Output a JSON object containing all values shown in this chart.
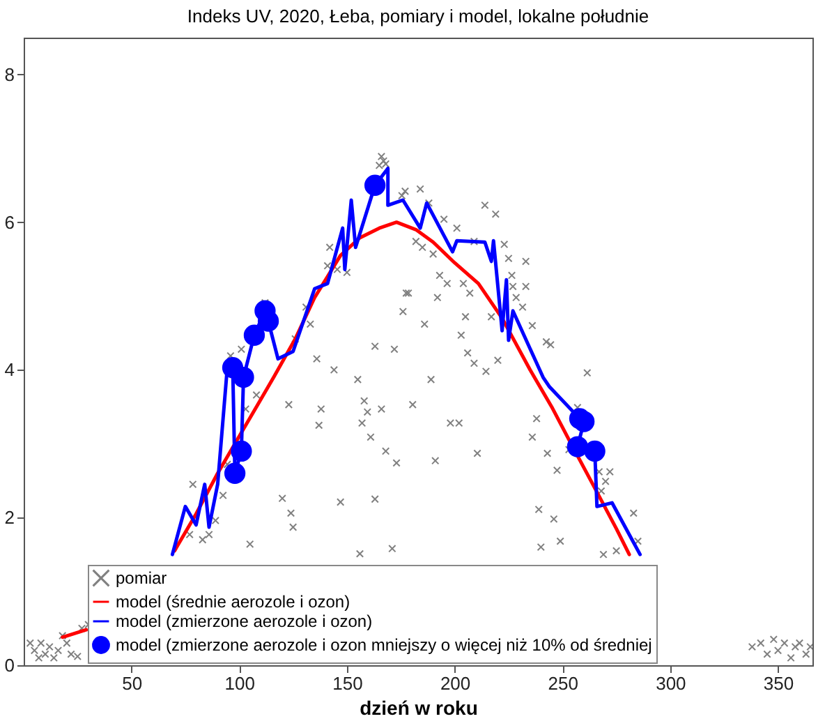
{
  "chart_data": {
    "type": "line",
    "title": "Indeks UV, 2020, Łeba, pomiary i model, lokalne południe",
    "xlabel": "dzień w roku",
    "xlim": [
      0,
      366
    ],
    "ylim": [
      0,
      8.5
    ],
    "xticks": [
      50,
      100,
      150,
      200,
      250,
      300,
      350
    ],
    "yticks": [
      0,
      2,
      4,
      6,
      8
    ],
    "legend": "bottom left",
    "series": [
      {
        "name": "pomiar",
        "type": "scatter",
        "marker": "cross",
        "color": "#808080",
        "x": [
          3,
          5,
          7,
          8,
          10,
          12,
          14,
          16,
          18,
          20,
          22,
          25,
          27,
          30,
          338,
          342,
          345,
          348,
          350,
          353,
          356,
          358,
          360,
          363,
          365,
          77,
          83,
          86,
          78.5,
          89,
          92.5,
          105,
          108,
          103,
          123,
          120,
          124,
          125,
          136,
          144,
          138,
          137,
          155,
          158,
          157,
          166,
          159.5,
          161,
          168,
          173,
          147,
          163,
          156,
          171,
          94.5,
          142,
          141,
          145.5,
          150,
          165,
          166,
          168,
          175.5,
          131,
          133,
          126,
          163,
          172,
          176,
          177.5,
          101,
          112,
          96,
          167,
          177,
          184,
          188,
          195,
          201,
          214,
          219,
          182,
          185,
          190,
          193,
          196.5,
          204,
          207,
          209,
          223,
          225,
          233,
          226.5,
          227,
          233,
          228.5,
          231.5,
          236,
          242.5,
          244.5,
          178.5,
          192,
          186,
          205,
          217,
          203,
          206,
          209,
          214.5,
          220,
          261.5,
          189,
          180.5,
          198,
          202,
          210.5,
          191,
          238,
          236,
          243,
          247.5,
          257,
          253,
          267,
          272,
          270,
          268,
          283,
          239,
          246,
          240,
          249,
          269,
          275,
          285
        ],
        "values": [
          0.3,
          0.2,
          0.1,
          0.3,
          0.15,
          0.25,
          0.1,
          0.2,
          0.4,
          0.3,
          0.15,
          0.12,
          0.5,
          0.55,
          0.25,
          0.3,
          0.15,
          0.35,
          0.2,
          0.3,
          0.1,
          0.25,
          0.3,
          0.15,
          0.25,
          1.77,
          1.7,
          1.77,
          2.45,
          1.96,
          2.3,
          1.64,
          3.66,
          3.47,
          3.53,
          2.26,
          2.06,
          1.87,
          4.15,
          4.0,
          3.47,
          3.25,
          3.87,
          3.58,
          3.28,
          3.47,
          3.43,
          3.09,
          2.9,
          2.74,
          2.21,
          2.25,
          1.51,
          1.58,
          2.72,
          5.66,
          5.41,
          5.36,
          5.32,
          6.77,
          6.89,
          6.79,
          6.36,
          4.85,
          4.62,
          4.42,
          4.32,
          4.28,
          4.79,
          5.04,
          4.28,
          4.91,
          4.19,
          6.83,
          6.42,
          6.45,
          6.26,
          6.04,
          5.92,
          6.23,
          6.11,
          5.74,
          5.66,
          5.57,
          5.28,
          5.17,
          5.17,
          5.04,
          5.74,
          5.7,
          5.51,
          5.47,
          5.28,
          5.13,
          5.13,
          4.98,
          4.85,
          4.6,
          4.38,
          4.34,
          5.04,
          4.98,
          4.62,
          4.72,
          4.72,
          4.47,
          4.23,
          4.09,
          3.98,
          4.13,
          3.96,
          3.87,
          3.53,
          3.28,
          3.28,
          2.87,
          2.77,
          3.34,
          3.09,
          2.87,
          2.64,
          3.49,
          2.92,
          2.62,
          2.62,
          2.49,
          2.36,
          2.06,
          2.11,
          1.98,
          1.6,
          1.68,
          1.5,
          1.55,
          1.68
        ]
      },
      {
        "name": "model (średnie aerozole i ozon)",
        "marker": "none",
        "color": "#ff0000",
        "x": [
          18,
          29,
          50,
          70,
          80,
          90,
          100,
          108,
          116,
          126,
          135,
          147,
          156,
          165,
          173,
          182,
          190,
          200,
          211,
          222,
          235,
          245,
          254,
          265,
          275,
          281
        ],
        "values": [
          0.38,
          0.48,
          null,
          1.55,
          2.05,
          2.6,
          3.1,
          3.5,
          3.9,
          4.42,
          4.98,
          5.55,
          5.79,
          5.92,
          6.0,
          5.9,
          5.73,
          5.45,
          5.17,
          4.7,
          4.0,
          3.5,
          3.0,
          2.4,
          1.85,
          1.5
        ]
      },
      {
        "name": "model (zmierzone aerozole i ozon)",
        "marker": "none",
        "color": "#0000ff",
        "x": [
          69,
          75,
          80,
          84,
          86,
          90,
          94.5,
          97,
          98,
          101,
          102,
          107,
          112,
          113.5,
          118,
          125,
          135,
          141,
          148,
          149,
          152,
          154,
          163,
          169,
          169,
          176,
          184,
          187,
          199,
          201,
          214,
          217,
          218,
          222,
          224,
          225,
          227,
          241,
          244,
          258,
          260,
          257,
          265,
          266,
          273,
          286
        ],
        "values": [
          1.5,
          2.15,
          1.9,
          2.45,
          1.87,
          2.45,
          4.04,
          4.03,
          2.6,
          2.9,
          3.9,
          4.47,
          4.8,
          4.66,
          4.15,
          4.25,
          5.1,
          5.17,
          5.92,
          5.36,
          6.3,
          5.66,
          6.5,
          6.73,
          6.23,
          6.3,
          5.92,
          6.26,
          5.6,
          5.75,
          5.73,
          5.47,
          5.75,
          4.53,
          5.22,
          4.4,
          4.8,
          3.9,
          3.77,
          3.34,
          3.3,
          2.96,
          2.9,
          2.15,
          2.2,
          1.5
        ]
      },
      {
        "name": "model (zmierzone aerozole i ozon mniejszy o więcej niż 10% od średniej",
        "type": "scatter",
        "marker": "circle",
        "color": "#0000ff",
        "x": [
          97,
          98,
          101,
          102,
          107,
          112,
          113.5,
          163,
          258,
          260,
          257,
          265
        ],
        "values": [
          4.03,
          2.6,
          2.9,
          3.9,
          4.47,
          4.8,
          4.66,
          6.5,
          3.34,
          3.3,
          2.96,
          2.9
        ]
      }
    ]
  }
}
